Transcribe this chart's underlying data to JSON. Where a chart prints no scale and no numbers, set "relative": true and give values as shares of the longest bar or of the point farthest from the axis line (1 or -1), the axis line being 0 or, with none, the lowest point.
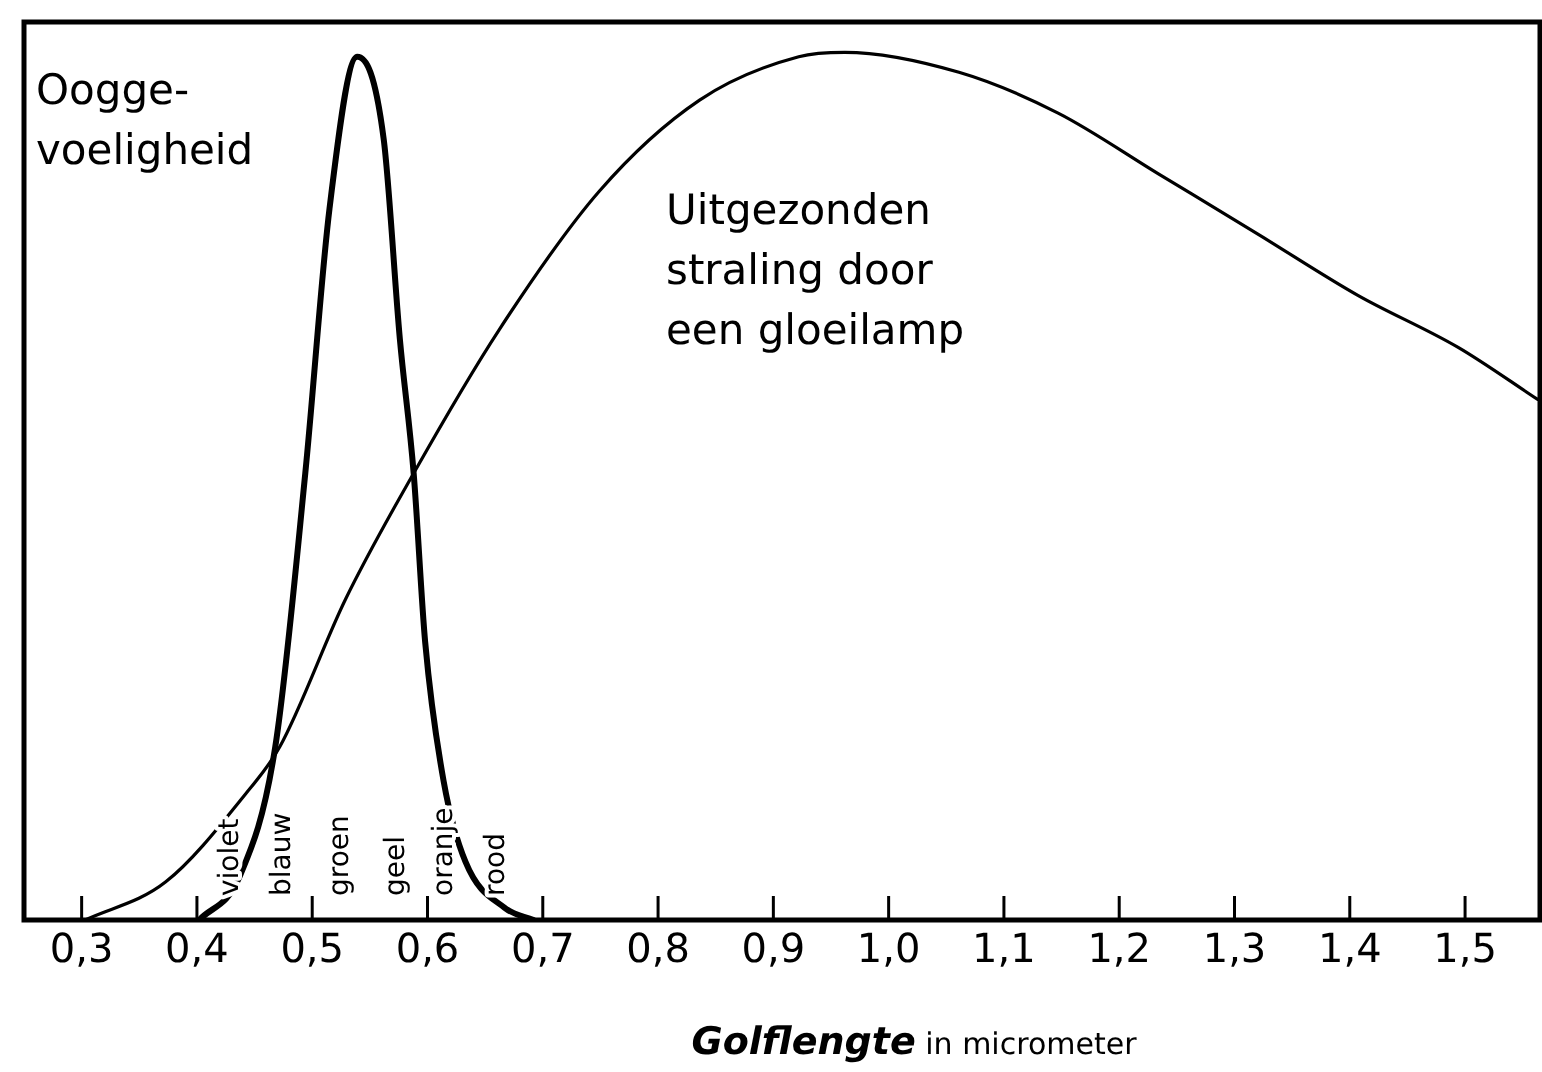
{
  "chart_data": {
    "type": "line",
    "relative": true,
    "xlabel": "Golflengte in micrometer",
    "xlim": [
      0.25,
      1.565
    ],
    "xticks": [
      {
        "value": 0.3,
        "label": "0,3"
      },
      {
        "value": 0.4,
        "label": "0,4"
      },
      {
        "value": 0.5,
        "label": "0,5"
      },
      {
        "value": 0.6,
        "label": "0,6"
      },
      {
        "value": 0.7,
        "label": "0,7"
      },
      {
        "value": 0.8,
        "label": "0,8"
      },
      {
        "value": 0.9,
        "label": "0,9"
      },
      {
        "value": 1.0,
        "label": "1,0"
      },
      {
        "value": 1.1,
        "label": "1,1"
      },
      {
        "value": 1.2,
        "label": "1,2"
      },
      {
        "value": 1.3,
        "label": "1,3"
      },
      {
        "value": 1.4,
        "label": "1,4"
      },
      {
        "value": 1.5,
        "label": "1,5"
      }
    ],
    "tick_labels": "x",
    "grid": false,
    "legend": false,
    "marker": "none",
    "line_style": "solid",
    "series": [
      {
        "name": "Oogge-\nvoeligheid",
        "color": "#000000",
        "x": [
          0.402,
          0.437,
          0.468,
          0.494,
          0.515,
          0.539,
          0.562,
          0.576,
          0.588,
          0.598,
          0.614,
          0.633,
          0.667,
          0.692
        ],
        "values": [
          0,
          0.05,
          0.2,
          0.515,
          0.82,
          0.995,
          0.9,
          0.67,
          0.515,
          0.32,
          0.16,
          0.067,
          0.014,
          0
        ]
      },
      {
        "name": "Uitgezonden\nstraling door\neen gloeilamp",
        "color": "#000000",
        "x": [
          0.303,
          0.373,
          0.442,
          0.472,
          0.529,
          0.588,
          0.662,
          0.749,
          0.836,
          0.922,
          0.962,
          1.061,
          1.147,
          1.234,
          1.321,
          1.407,
          1.494,
          1.563
        ],
        "values": [
          0,
          0.044,
          0.145,
          0.2,
          0.37,
          0.515,
          0.68,
          0.84,
          0.945,
          0.995,
          1.0,
          0.977,
          0.93,
          0.86,
          0.79,
          0.72,
          0.66,
          0.6
        ]
      }
    ],
    "annotations": [
      "violet",
      "blauw",
      "groen",
      "geel",
      "oranje",
      "rood"
    ]
  }
}
